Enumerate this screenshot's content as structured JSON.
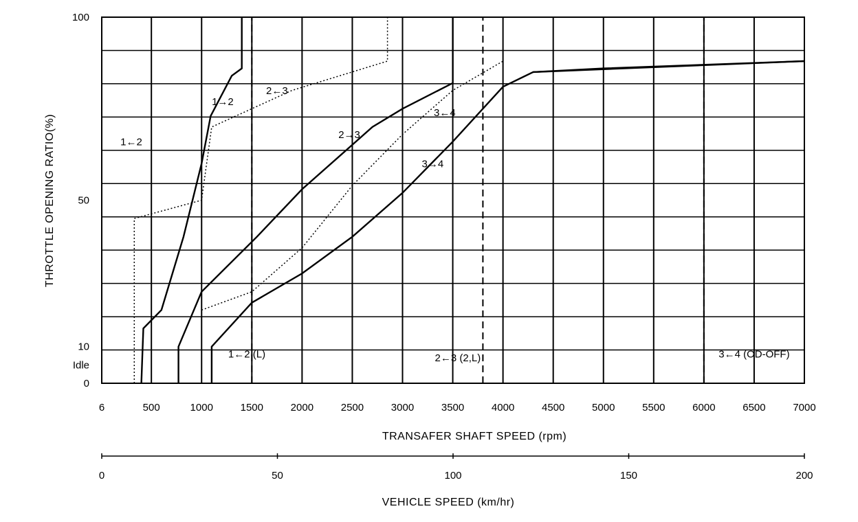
{
  "chart_data": {
    "type": "line",
    "title": "",
    "xlabel": "TRANSAFER SHAFT SPEED (rpm)",
    "ylabel": "THROTTLE OPENING RATIO(%)",
    "secondary_xlabel": "VEHICLE SPEED (km/hr)",
    "xlim": [
      6,
      7000
    ],
    "ylim": [
      0,
      100
    ],
    "x_ticks": [
      "6",
      "500",
      "1000",
      "1500",
      "2000",
      "2500",
      "3000",
      "3500",
      "4000",
      "4500",
      "5000",
      "5500",
      "6000",
      "6500",
      "7000"
    ],
    "y_ticks": [
      "100",
      "50",
      "10",
      "Idle",
      "0"
    ],
    "secondary_x_ticks": [
      "0",
      "50",
      "100",
      "150",
      "200"
    ],
    "grid": true,
    "series": [
      {
        "name": "1→2",
        "style": "solid",
        "points": [
          [
            400,
            0
          ],
          [
            420,
            15
          ],
          [
            600,
            20
          ],
          [
            820,
            40
          ],
          [
            1000,
            60
          ],
          [
            1090,
            73
          ],
          [
            1300,
            84
          ],
          [
            1400,
            86
          ],
          [
            1400,
            100
          ]
        ]
      },
      {
        "name": "1←2",
        "style": "dotted",
        "points": [
          [
            330,
            0
          ],
          [
            330,
            45
          ],
          [
            1000,
            50
          ],
          [
            1100,
            70
          ],
          [
            1900,
            80
          ],
          [
            2850,
            88
          ],
          [
            2850,
            100
          ]
        ]
      },
      {
        "name": "2→3",
        "style": "solid",
        "points": [
          [
            770,
            0
          ],
          [
            770,
            10
          ],
          [
            1000,
            25
          ],
          [
            1550,
            40
          ],
          [
            2000,
            53
          ],
          [
            2700,
            70
          ],
          [
            3000,
            75
          ],
          [
            3500,
            82
          ],
          [
            3500,
            100
          ]
        ]
      },
      {
        "name": "2←3",
        "style": "dotted",
        "points": [
          [
            1000,
            20
          ],
          [
            1500,
            25
          ],
          [
            2000,
            37
          ],
          [
            2500,
            54
          ],
          [
            3000,
            68
          ],
          [
            3500,
            80
          ],
          [
            4000,
            88
          ]
        ]
      },
      {
        "name": "3→4",
        "style": "solid",
        "points": [
          [
            1100,
            0
          ],
          [
            1100,
            10
          ],
          [
            1500,
            22
          ],
          [
            2000,
            30
          ],
          [
            2500,
            40
          ],
          [
            3000,
            52
          ],
          [
            3500,
            66
          ],
          [
            4000,
            81
          ],
          [
            4300,
            85
          ],
          [
            7000,
            88
          ]
        ]
      },
      {
        "name": "3←4",
        "style": "solid",
        "points": [
          [
            4300,
            85
          ],
          [
            5000,
            86
          ],
          [
            6000,
            87
          ],
          [
            7000,
            88
          ]
        ]
      },
      {
        "name": "1←2 (L)",
        "style": "dashed",
        "points": [
          [
            1500,
            0
          ],
          [
            1500,
            100
          ]
        ]
      },
      {
        "name": "2←3 (2,L)",
        "style": "dashed",
        "points": [
          [
            3800,
            0
          ],
          [
            3800,
            100
          ]
        ]
      },
      {
        "name": "3←4 (OD-OFF)",
        "style": "dashed",
        "points": [
          [
            6000,
            0
          ],
          [
            6000,
            100
          ]
        ]
      }
    ]
  }
}
